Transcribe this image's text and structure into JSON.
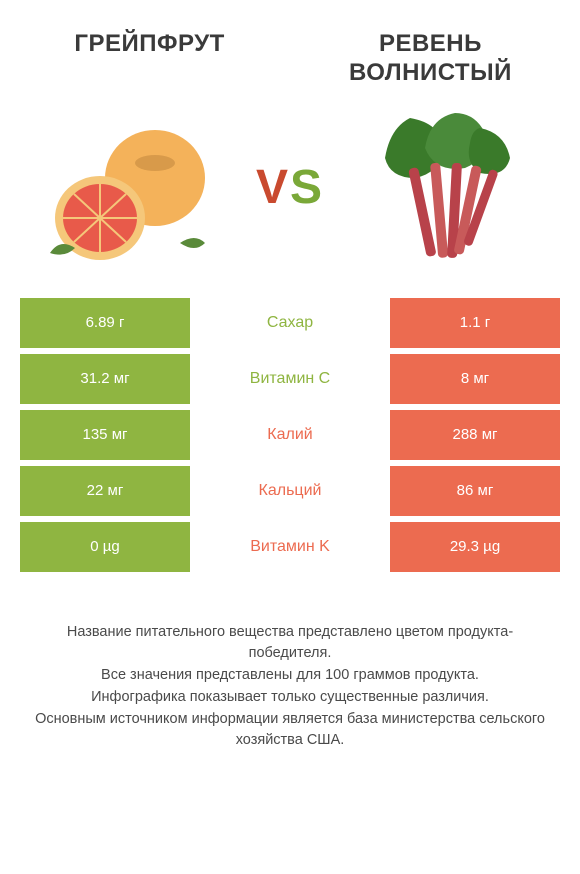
{
  "colors": {
    "left_product": "#8fb541",
    "right_product": "#ec6b50",
    "text_dark": "#3a3a3a",
    "vs_v": "#c94a2f",
    "vs_s": "#7aa838"
  },
  "titles": {
    "left": "ГРЕЙПФРУТ",
    "right": "РЕВЕНЬ ВОЛНИСТЫЙ"
  },
  "vs_label": "VS",
  "rows": [
    {
      "nutrient": "Сахар",
      "left_value": "6.89 г",
      "right_value": "1.1 г",
      "winner": "left"
    },
    {
      "nutrient": "Витамин C",
      "left_value": "31.2 мг",
      "right_value": "8 мг",
      "winner": "left"
    },
    {
      "nutrient": "Калий",
      "left_value": "135 мг",
      "right_value": "288 мг",
      "winner": "right"
    },
    {
      "nutrient": "Кальций",
      "left_value": "22 мг",
      "right_value": "86 мг",
      "winner": "right"
    },
    {
      "nutrient": "Витамин K",
      "left_value": "0 µg",
      "right_value": "29.3 µg",
      "winner": "right"
    }
  ],
  "footer_lines": [
    "Название питательного вещества представлено цветом продукта-победителя.",
    "Все значения представлены для 100 граммов продукта.",
    "Инфографика показывает только существенные различия.",
    "Основным источником информации является база министерства сельского хозяйства США."
  ]
}
